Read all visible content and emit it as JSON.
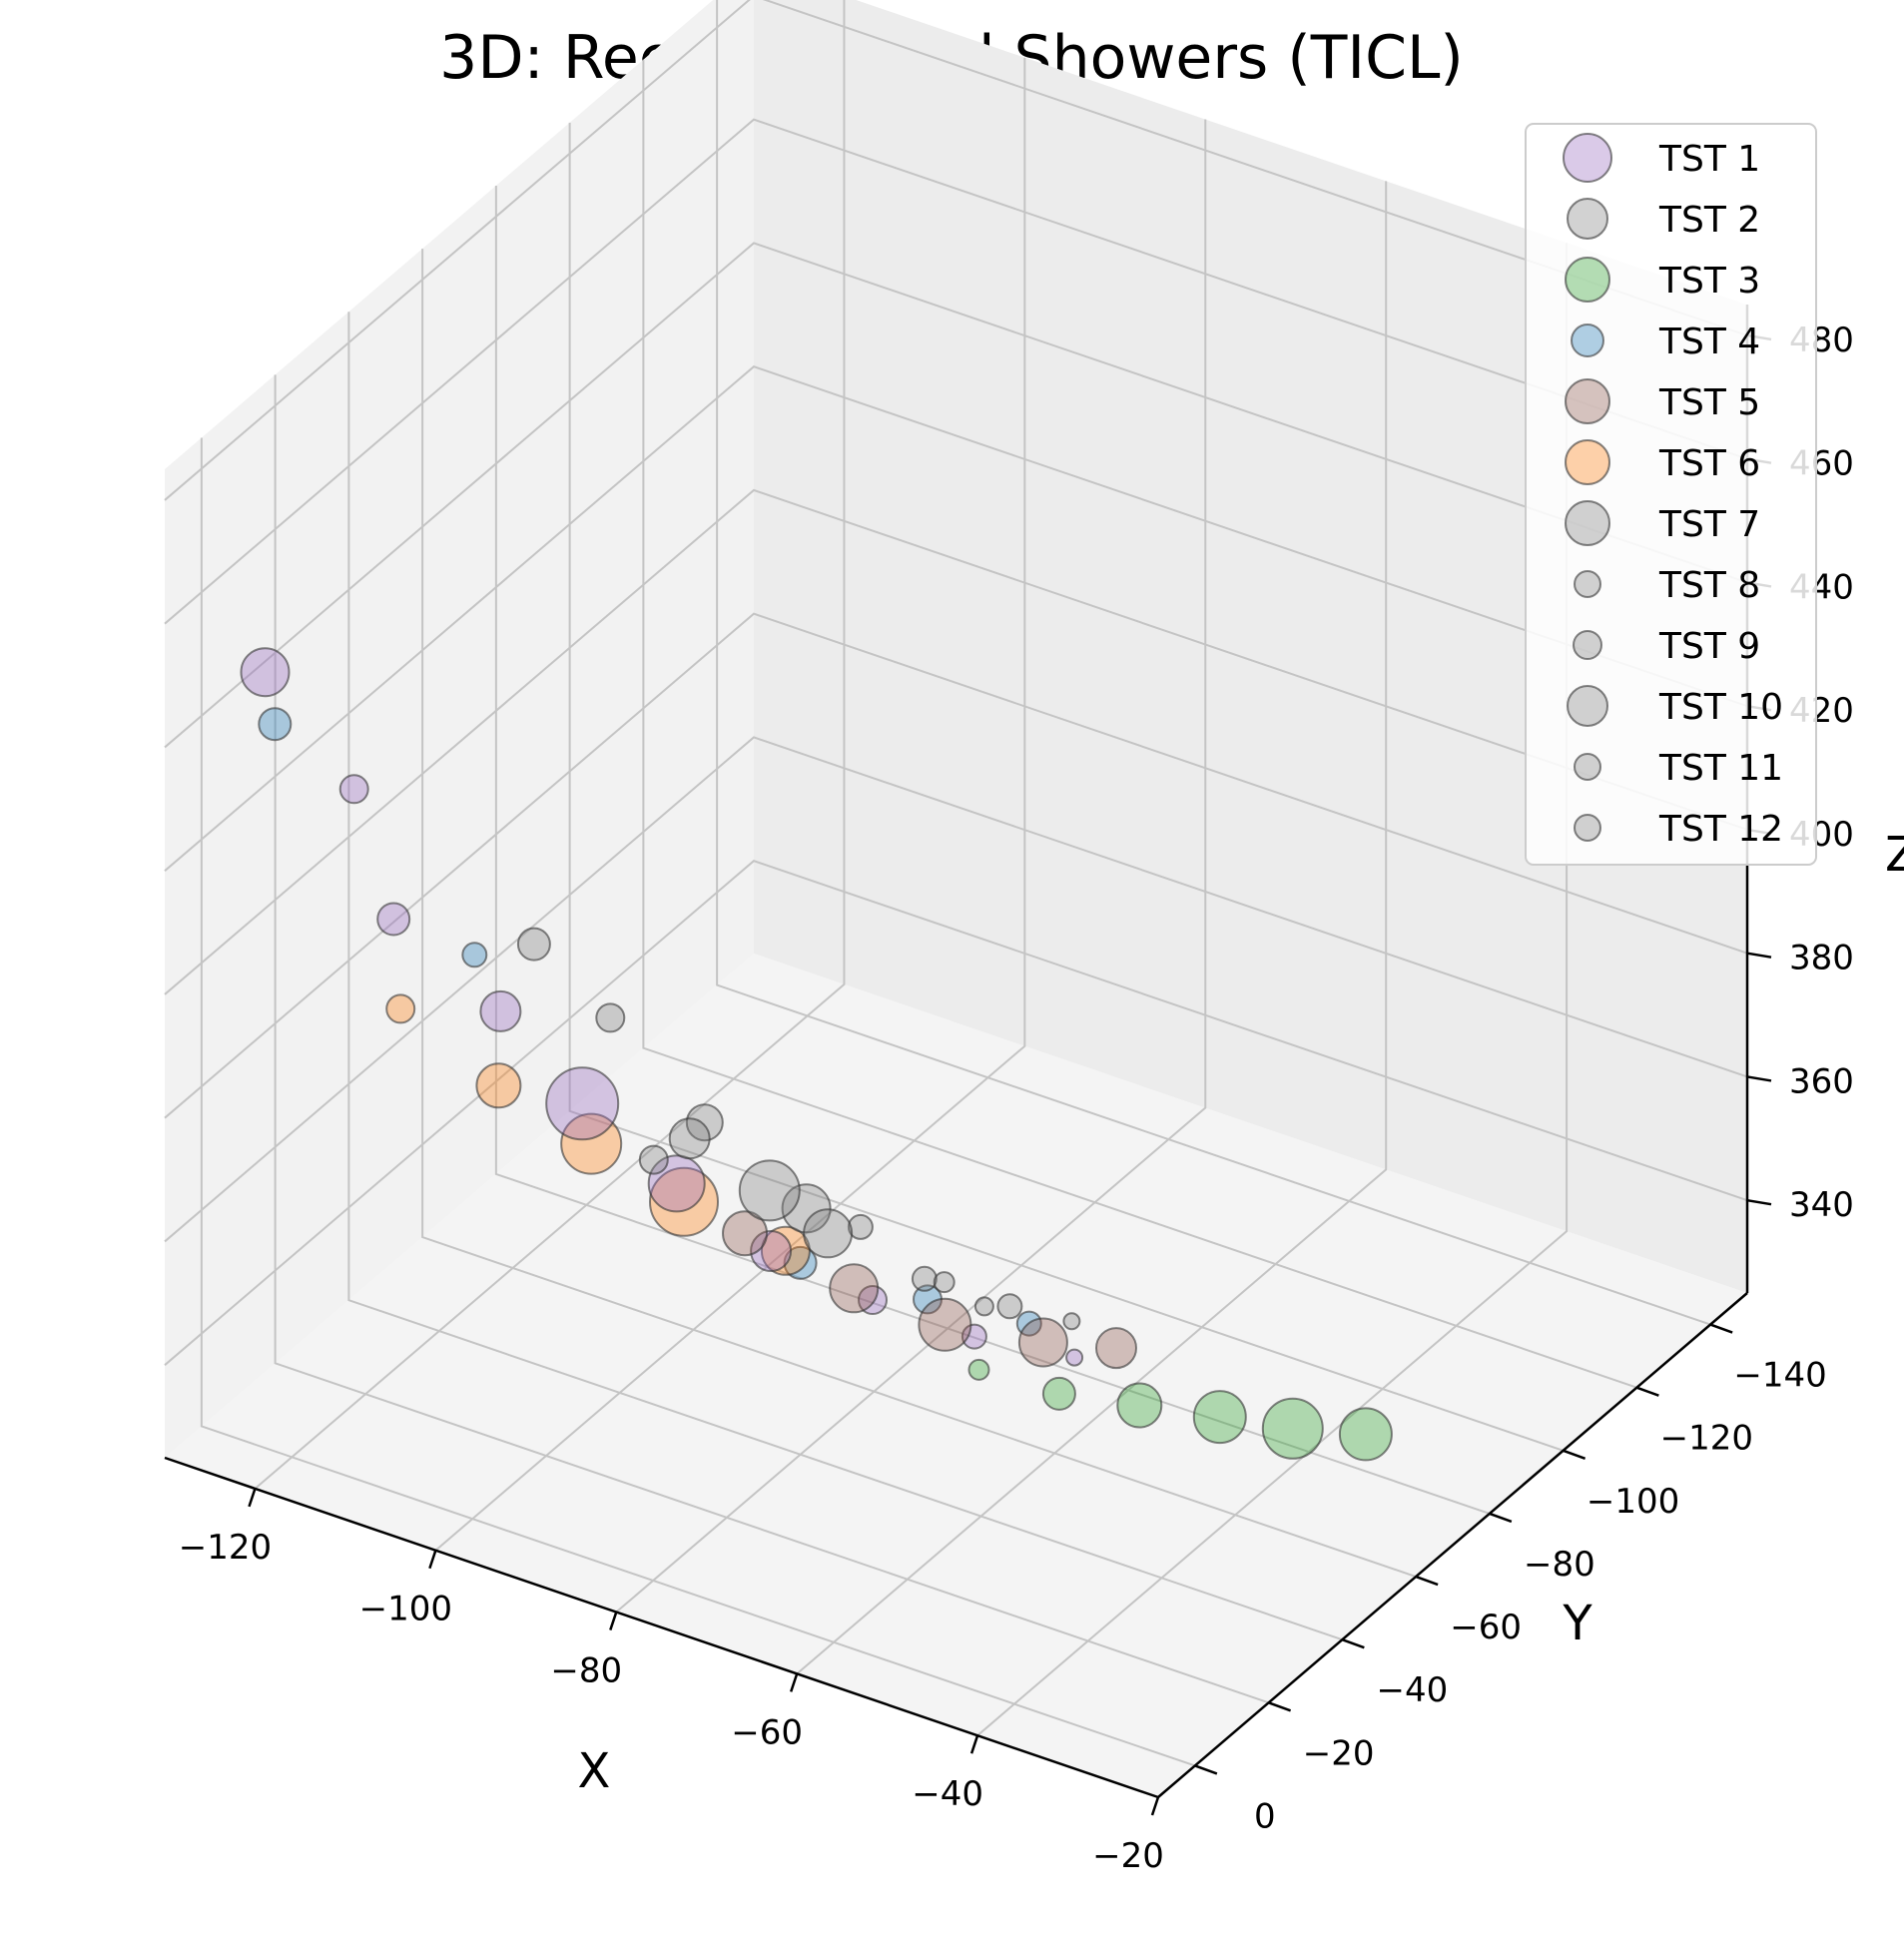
{
  "chart_data": {
    "type": "scatter",
    "title": "3D: Reconstructed Showers (TICL)",
    "xlabel": "X",
    "ylabel": "Y",
    "zlabel": "Z",
    "xlim": [
      -130,
      -20
    ],
    "ylim": [
      -150,
      10
    ],
    "zlim": [
      325,
      485
    ],
    "x_ticks": [
      "−120",
      "−100",
      "−80",
      "−60",
      "−40",
      "−20"
    ],
    "y_ticks": [
      "0",
      "−20",
      "−40",
      "−60",
      "−80",
      "−100",
      "−120",
      "−140"
    ],
    "z_ticks": [
      "340",
      "360",
      "380",
      "400",
      "420",
      "440",
      "460",
      "480"
    ],
    "legend_position": "top-right",
    "grid": true,
    "series": [
      {
        "name": "TST 1",
        "color": "#9467bd",
        "points": [
          [
            -125,
            -5,
            447,
            24
          ],
          [
            -118,
            -12,
            428,
            14
          ],
          [
            -112,
            -8,
            412,
            16
          ],
          [
            -103,
            -15,
            398,
            20
          ],
          [
            -96,
            -20,
            384,
            36
          ],
          [
            -88,
            -26,
            372,
            28
          ],
          [
            -80,
            -32,
            362,
            20
          ],
          [
            -72,
            -40,
            354,
            14
          ],
          [
            -64,
            -48,
            348,
            12
          ],
          [
            -57,
            -58,
            343,
            8
          ]
        ]
      },
      {
        "name": "TST 2",
        "color": "#7f7f7f",
        "points": [
          [
            -94,
            -2,
            420,
            16
          ],
          [
            -88,
            -8,
            408,
            14
          ],
          [
            -80,
            -14,
            392,
            18
          ],
          [
            -72,
            -22,
            378,
            24
          ],
          [
            -63,
            -32,
            366,
            12
          ]
        ]
      },
      {
        "name": "TST 3",
        "color": "#2ca02c",
        "points": [
          [
            -48,
            -10,
            370,
            10
          ],
          [
            -44,
            -22,
            362,
            16
          ],
          [
            -40,
            -34,
            356,
            22
          ],
          [
            -36,
            -46,
            350,
            26
          ],
          [
            -32,
            -56,
            345,
            30
          ],
          [
            -28,
            -66,
            341,
            26
          ]
        ]
      },
      {
        "name": "TST 4",
        "color": "#1f77b4",
        "points": [
          [
            -128,
            -15,
            432,
            16
          ],
          [
            -112,
            -30,
            395,
            12
          ],
          [
            -80,
            -40,
            356,
            16
          ],
          [
            -70,
            -50,
            350,
            14
          ],
          [
            -62,
            -58,
            346,
            12
          ]
        ]
      },
      {
        "name": "TST 5",
        "color": "#8c564b",
        "points": [
          [
            -78,
            -20,
            372,
            22
          ],
          [
            -70,
            -30,
            362,
            24
          ],
          [
            -64,
            -40,
            354,
            26
          ],
          [
            -58,
            -52,
            348,
            24
          ],
          [
            -54,
            -62,
            344,
            20
          ]
        ]
      },
      {
        "name": "TST 6",
        "color": "#ff7f0e",
        "points": [
          [
            -110,
            -5,
            400,
            14
          ],
          [
            -102,
            -12,
            388,
            22
          ],
          [
            -95,
            -20,
            378,
            30
          ],
          [
            -88,
            -28,
            368,
            34
          ],
          [
            -80,
            -36,
            360,
            24
          ]
        ]
      },
      {
        "name": "TST 7",
        "color": "#7f7f7f",
        "points": [
          [
            -78,
            -5,
            395,
            20
          ],
          [
            -72,
            -12,
            386,
            30
          ],
          [
            -68,
            -18,
            378,
            24
          ]
        ]
      },
      {
        "name": "TST 8",
        "color": "#7f7f7f",
        "points": [
          [
            -60,
            -30,
            368,
            10
          ],
          [
            -56,
            -38,
            362,
            12
          ]
        ]
      },
      {
        "name": "TST 9",
        "color": "#7f7f7f",
        "points": [
          [
            -66,
            -22,
            378,
            12
          ]
        ]
      },
      {
        "name": "TST 10",
        "color": "#7f7f7f",
        "points": [
          [
            -84,
            -10,
            386,
            14
          ]
        ]
      },
      {
        "name": "TST 11",
        "color": "#7f7f7f",
        "points": [
          [
            -52,
            -45,
            358,
            8
          ]
        ]
      },
      {
        "name": "TST 12",
        "color": "#7f7f7f",
        "points": [
          [
            -58,
            -36,
            362,
            9
          ]
        ]
      }
    ]
  }
}
